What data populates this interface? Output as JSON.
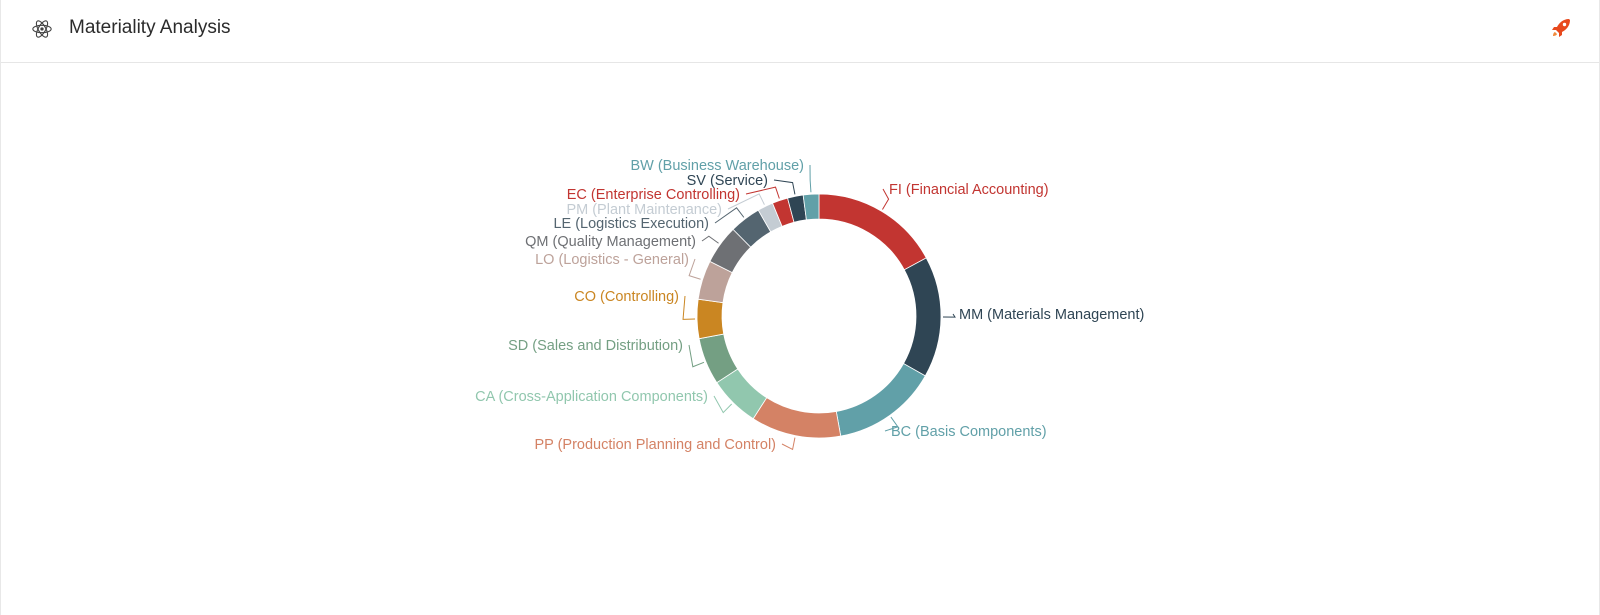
{
  "header": {
    "title": "Materiality Analysis",
    "icon": "react-atom-icon",
    "action_icon": "rocket-icon",
    "action_color": "#e8491d"
  },
  "chart_data": {
    "type": "pie",
    "donut": true,
    "start_category": "FI (Financial Accounting)",
    "direction": "clockwise",
    "slices": [
      {
        "label": "FI (Financial Accounting)",
        "value": 16.5,
        "color": "#c23531"
      },
      {
        "label": "MM (Materials Management)",
        "value": 15.5,
        "color": "#2f4554"
      },
      {
        "label": "BC (Basis Components)",
        "value": 13.5,
        "color": "#61a0a8"
      },
      {
        "label": "PP (Production Planning and Control)",
        "value": 11.5,
        "color": "#d48265"
      },
      {
        "label": "CA (Cross-Application Components)",
        "value": 6.5,
        "color": "#91c7ae"
      },
      {
        "label": "SD (Sales and Distribution)",
        "value": 6.0,
        "color": "#749f83"
      },
      {
        "label": "CO (Controlling)",
        "value": 5.0,
        "color": "#ca8622"
      },
      {
        "label": "LO (Logistics - General)",
        "value": 5.0,
        "color": "#bda29a"
      },
      {
        "label": "QM (Quality Management)",
        "value": 5.0,
        "color": "#6e7074"
      },
      {
        "label": "LE (Logistics Execution)",
        "value": 4.0,
        "color": "#546570"
      },
      {
        "label": "PM (Plant Maintenance)",
        "value": 2.0,
        "color": "#c4ccd3"
      },
      {
        "label": "EC (Enterprise Controlling)",
        "value": 2.0,
        "color": "#c23531"
      },
      {
        "label": "SV (Service)",
        "value": 2.0,
        "color": "#2f4554"
      },
      {
        "label": "BW (Business Warehouse)",
        "value": 2.0,
        "color": "#61a0a8"
      }
    ]
  }
}
